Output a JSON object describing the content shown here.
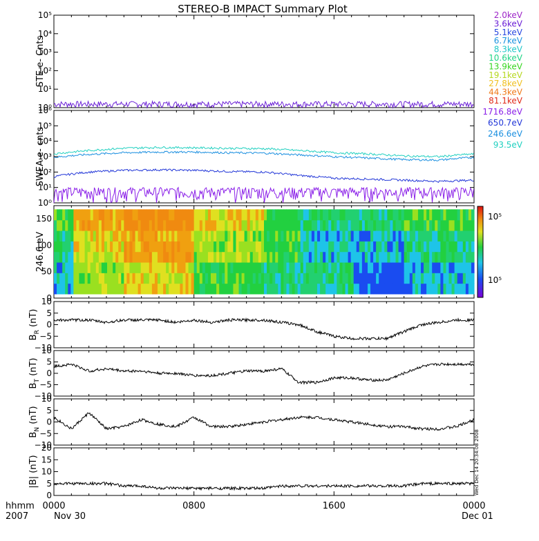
{
  "title": "STEREO-B IMPACT Summary Plot",
  "footer": {
    "left_top": "hhmm",
    "left_bottom": "2007",
    "date_start": "Nov 30",
    "date_end": "Dec 01"
  },
  "side_stamp": "Wed Dec 14 20:34:08 2008",
  "chart_data": [
    {
      "type": "line",
      "title": "STE",
      "ylabel": "STE e- Cnts",
      "yscale": "log",
      "ylim": [
        1,
        100000
      ],
      "yticks": [
        "10⁰",
        "10¹",
        "10²",
        "10³",
        "10⁴",
        "10⁵"
      ],
      "xlim": [
        "0000",
        "0000"
      ],
      "series": [
        {
          "name": "2.0keV",
          "color": "#9d25c8",
          "values": "noise ~1-2 counts",
          "base": 1.3
        },
        {
          "name": "3.6keV",
          "color": "#6a1fd6"
        },
        {
          "name": "5.1keV",
          "color": "#2746e0"
        },
        {
          "name": "6.7keV",
          "color": "#1a93e0"
        },
        {
          "name": "8.3keV",
          "color": "#1fc8c8"
        },
        {
          "name": "10.6keV",
          "color": "#20d486"
        },
        {
          "name": "13.9keV",
          "color": "#35d620"
        },
        {
          "name": "19.1keV",
          "color": "#b6d820"
        },
        {
          "name": "27.8keV",
          "color": "#f0c020"
        },
        {
          "name": "44.3keV",
          "color": "#f07a18"
        },
        {
          "name": "81.1keV",
          "color": "#e02a18"
        }
      ]
    },
    {
      "type": "line",
      "ylabel": "SWEA e- cnts",
      "yscale": "log",
      "ylim": [
        1,
        1000000
      ],
      "yticks": [
        "10⁰",
        "10¹",
        "10²",
        "10³",
        "10⁴",
        "10⁵",
        "10⁶"
      ],
      "series": [
        {
          "name": "1716.8eV",
          "color": "#8a1fe8"
        },
        {
          "name": "650.7eV",
          "color": "#2136d8"
        },
        {
          "name": "246.6eV",
          "color": "#1a8fe0"
        },
        {
          "name": "93.5eV",
          "color": "#20d0c0"
        }
      ],
      "x": [
        0,
        2,
        4,
        6,
        8,
        10,
        12,
        14,
        16,
        18,
        20,
        22,
        24
      ],
      "levels": {
        "93.5eV": [
          1500,
          2500,
          3500,
          4000,
          3800,
          3500,
          3300,
          2500,
          1800,
          1500,
          1100,
          1000,
          1500
        ],
        "246.6eV": [
          900,
          1400,
          1800,
          2000,
          2000,
          1800,
          1700,
          1300,
          1000,
          800,
          650,
          600,
          900
        ],
        "650.7eV": [
          50,
          100,
          130,
          140,
          130,
          110,
          100,
          60,
          40,
          35,
          30,
          25,
          30
        ],
        "1716.8eV": [
          5,
          5,
          5,
          5,
          5,
          5,
          5,
          5,
          5,
          5,
          5,
          5,
          5
        ]
      }
    },
    {
      "type": "heatmap",
      "ylabel": "246.6 eV",
      "ylim": [
        0,
        175
      ],
      "yticks": [
        "0",
        "50",
        "100",
        "150"
      ],
      "colorbar_labels": [
        "10⁵",
        "10⁵"
      ]
    },
    {
      "type": "line",
      "ylabel": "B",
      "ylabel_sub": "R",
      "ylabel_unit": "(nT)",
      "ylim": [
        -10,
        10
      ],
      "yticks": [
        "10",
        "5",
        "0",
        "−5",
        "−10"
      ],
      "x": [
        0,
        1,
        2,
        3,
        4,
        5,
        6,
        7,
        8,
        9,
        10,
        11,
        12,
        13,
        14,
        15,
        16,
        17,
        18,
        19,
        20,
        21,
        22,
        23,
        24
      ],
      "values": [
        2,
        2,
        2,
        1,
        2,
        2,
        2,
        1,
        2,
        1,
        2,
        2,
        2,
        1,
        0,
        -3,
        -5,
        -6,
        -6,
        -6,
        -3,
        0,
        1,
        2,
        2
      ]
    },
    {
      "type": "line",
      "ylabel": "B",
      "ylabel_sub": "T",
      "ylabel_unit": "(nT)",
      "ylim": [
        -10,
        10
      ],
      "yticks": [
        "10",
        "5",
        "0",
        "−5",
        "−10"
      ],
      "x": [
        0,
        1,
        2,
        3,
        4,
        5,
        6,
        7,
        8,
        9,
        10,
        11,
        12,
        13,
        14,
        15,
        16,
        17,
        18,
        19,
        20,
        21,
        22,
        23,
        24
      ],
      "values": [
        3,
        4,
        1,
        2,
        1,
        1,
        0,
        0,
        -1,
        -1,
        0,
        1,
        1,
        2,
        -4,
        -4,
        -2,
        -2,
        -3,
        -3,
        0,
        3,
        4,
        4,
        4
      ]
    },
    {
      "type": "line",
      "ylabel": "B",
      "ylabel_sub": "N",
      "ylabel_unit": "(nT)",
      "ylim": [
        -10,
        10
      ],
      "yticks": [
        "10",
        "5",
        "0",
        "−5",
        "−10"
      ],
      "x": [
        0,
        1,
        2,
        3,
        4,
        5,
        6,
        7,
        8,
        9,
        10,
        11,
        12,
        13,
        14,
        15,
        16,
        17,
        18,
        19,
        20,
        21,
        22,
        23,
        24
      ],
      "values": [
        2,
        -3,
        4,
        -3,
        -2,
        1,
        -1,
        -2,
        2,
        -2,
        -2,
        -1,
        0,
        1,
        2,
        2,
        1,
        0,
        -1,
        -2,
        -2,
        -3,
        -3,
        -2,
        1
      ]
    },
    {
      "type": "line",
      "ylabel": "|B| (nT)",
      "ylim": [
        0,
        20
      ],
      "yticks": [
        "20",
        "15",
        "10",
        "5",
        "0"
      ],
      "x": [
        0,
        1,
        2,
        3,
        4,
        5,
        6,
        7,
        8,
        9,
        10,
        11,
        12,
        13,
        14,
        15,
        16,
        17,
        18,
        19,
        20,
        21,
        22,
        23,
        24
      ],
      "values": [
        5,
        5,
        5,
        5,
        4,
        4,
        3,
        3,
        3,
        3,
        3,
        3,
        3,
        4,
        4,
        4,
        4,
        4,
        4,
        4,
        4,
        5,
        5,
        5,
        5
      ]
    }
  ],
  "xaxis": {
    "ticks": [
      "0000",
      "0800",
      "1600",
      "0000"
    ]
  }
}
